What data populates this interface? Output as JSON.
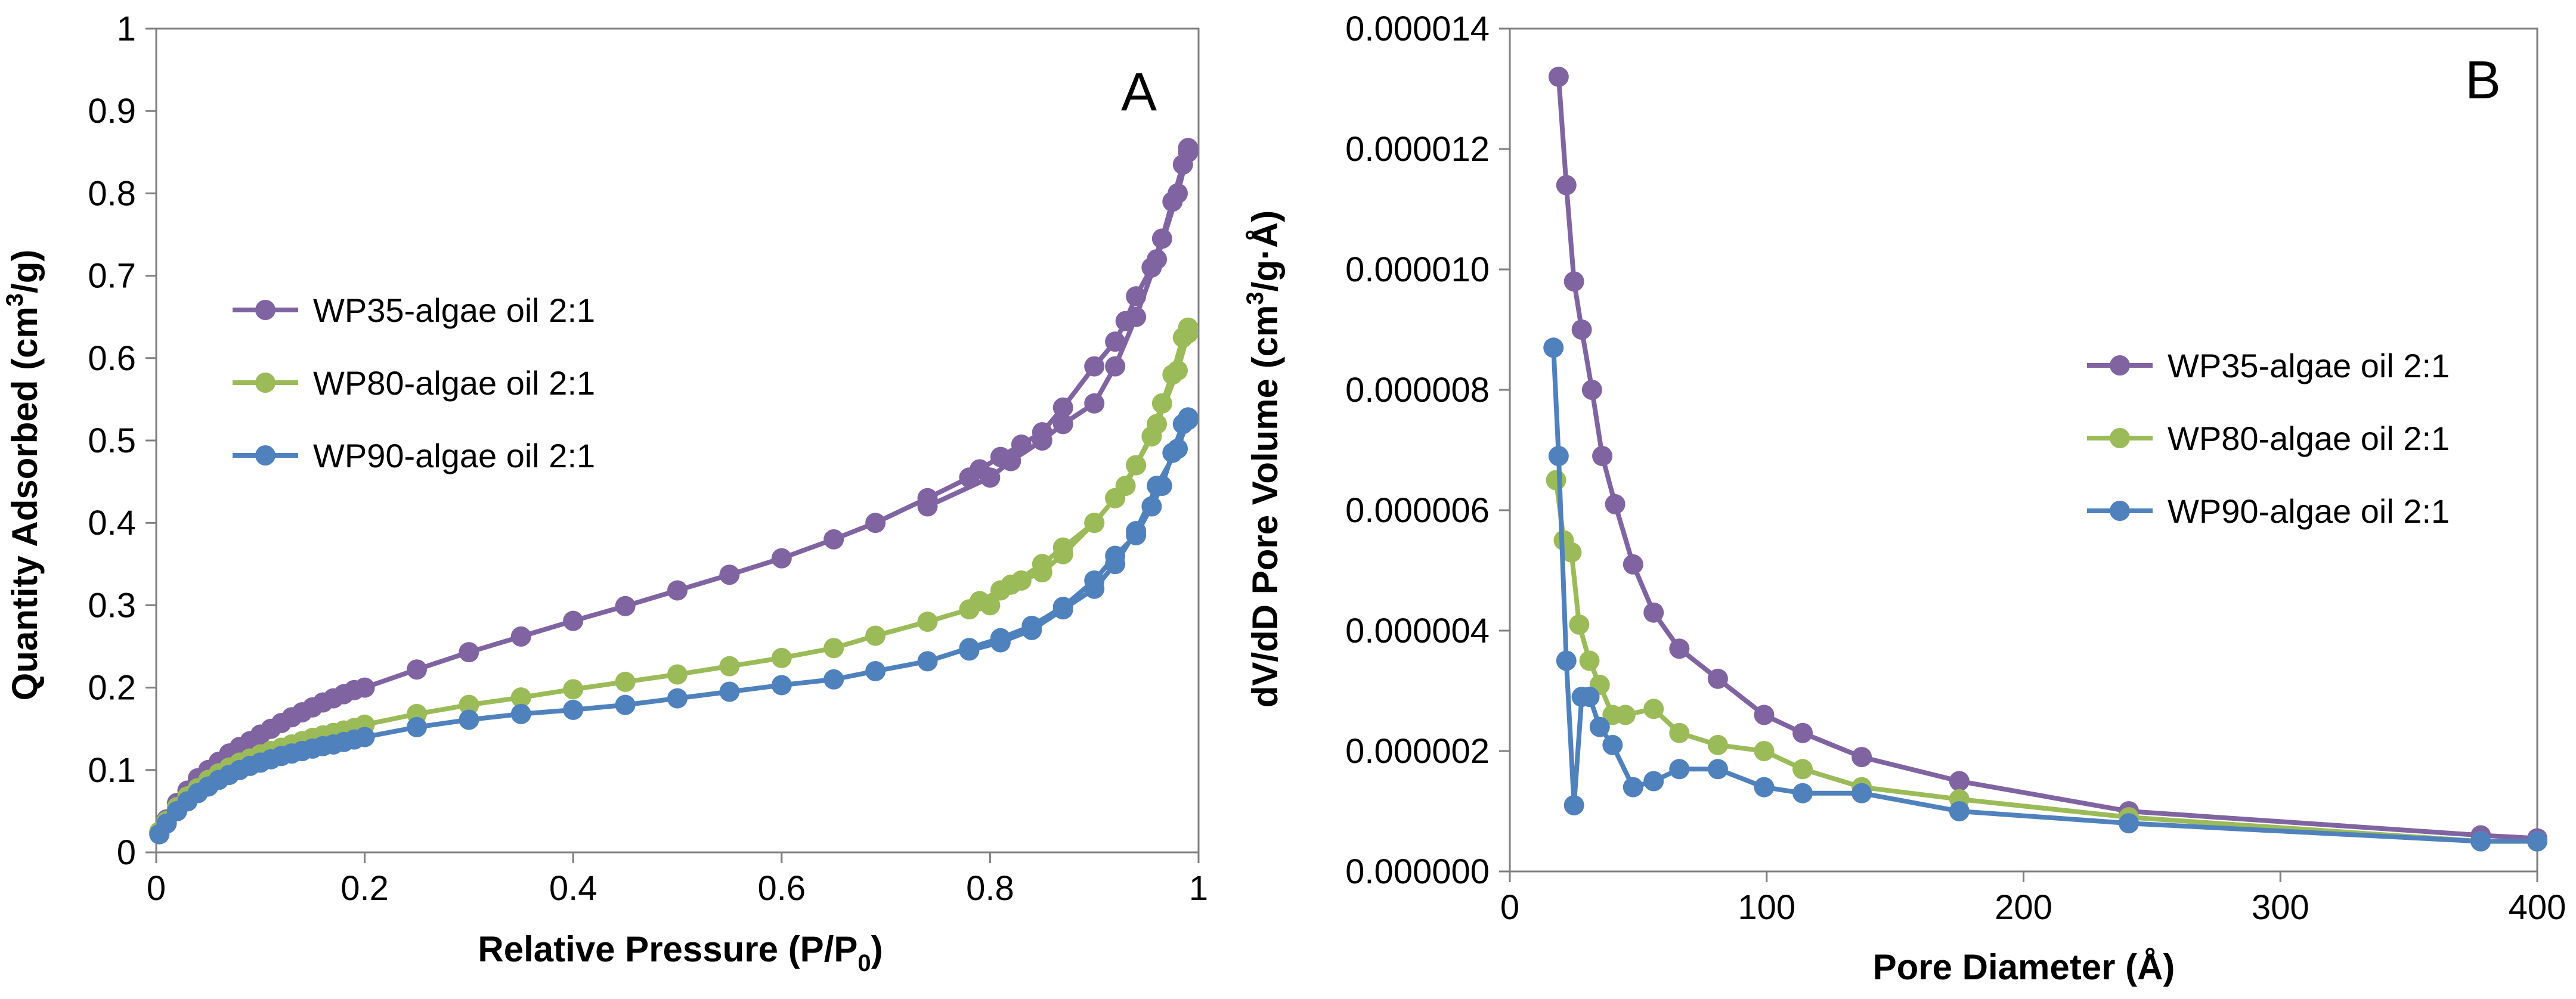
{
  "chart_data": [
    {
      "type": "line",
      "panel_label": "A",
      "xlabel": "Relative Pressure (P/P",
      "xlabel_sub": "0",
      "xlabel_end": ")",
      "ylabel": "Quantity Adsorbed (cm",
      "ylabel_sup": "3",
      "ylabel_end": "/g)",
      "xlim": [
        0,
        1
      ],
      "ylim": [
        0,
        1
      ],
      "x_ticks": [
        0,
        0.2,
        0.4,
        0.6,
        0.8,
        1
      ],
      "x_tick_labels": [
        "0",
        "0.2",
        "0.4",
        "0.6",
        "0.8",
        "1"
      ],
      "y_ticks": [
        0,
        0.1,
        0.2,
        0.3,
        0.4,
        0.5,
        0.6,
        0.7,
        0.8,
        0.9,
        1
      ],
      "y_tick_labels": [
        "0",
        "0.1",
        "0.2",
        "0.3",
        "0.4",
        "0.5",
        "0.6",
        "0.7",
        "0.8",
        "0.9",
        "1"
      ],
      "grid": false,
      "legend_position": "middle-left",
      "series": [
        {
          "name": "WP35-algae oil 2:1",
          "color": "#8064A2",
          "x": [
            0.003,
            0.01,
            0.02,
            0.03,
            0.04,
            0.05,
            0.06,
            0.07,
            0.08,
            0.09,
            0.1,
            0.11,
            0.12,
            0.13,
            0.14,
            0.15,
            0.16,
            0.17,
            0.18,
            0.19,
            0.2,
            0.25,
            0.3,
            0.35,
            0.4,
            0.45,
            0.5,
            0.55,
            0.6,
            0.65,
            0.69,
            0.74,
            0.78,
            0.79,
            0.81,
            0.83,
            0.85,
            0.87,
            0.9,
            0.92,
            0.93,
            0.94,
            0.955,
            0.965,
            0.975,
            0.985,
            0.99,
            0.99,
            0.98,
            0.96,
            0.94,
            0.92,
            0.9,
            0.87,
            0.85,
            0.82,
            0.8,
            0.74
          ],
          "y": [
            0.025,
            0.04,
            0.06,
            0.075,
            0.09,
            0.1,
            0.11,
            0.12,
            0.128,
            0.135,
            0.143,
            0.15,
            0.157,
            0.164,
            0.17,
            0.176,
            0.182,
            0.187,
            0.192,
            0.197,
            0.2,
            0.222,
            0.243,
            0.262,
            0.281,
            0.299,
            0.318,
            0.337,
            0.357,
            0.38,
            0.4,
            0.43,
            0.455,
            0.465,
            0.48,
            0.495,
            0.51,
            0.54,
            0.59,
            0.62,
            0.645,
            0.675,
            0.71,
            0.745,
            0.79,
            0.835,
            0.855,
            0.85,
            0.8,
            0.72,
            0.65,
            0.59,
            0.545,
            0.52,
            0.5,
            0.475,
            0.455,
            0.42
          ]
        },
        {
          "name": "WP80-algae oil 2:1",
          "color": "#9BBB59",
          "x": [
            0.003,
            0.01,
            0.02,
            0.03,
            0.04,
            0.05,
            0.06,
            0.07,
            0.08,
            0.09,
            0.1,
            0.11,
            0.12,
            0.13,
            0.14,
            0.15,
            0.16,
            0.17,
            0.18,
            0.19,
            0.2,
            0.25,
            0.3,
            0.35,
            0.4,
            0.45,
            0.5,
            0.55,
            0.6,
            0.65,
            0.69,
            0.74,
            0.78,
            0.79,
            0.81,
            0.83,
            0.85,
            0.87,
            0.9,
            0.92,
            0.93,
            0.94,
            0.955,
            0.965,
            0.975,
            0.985,
            0.99,
            0.99,
            0.98,
            0.96,
            0.94,
            0.92,
            0.9,
            0.87,
            0.85,
            0.82,
            0.8
          ],
          "y": [
            0.025,
            0.038,
            0.055,
            0.068,
            0.078,
            0.088,
            0.096,
            0.103,
            0.109,
            0.114,
            0.119,
            0.123,
            0.127,
            0.131,
            0.135,
            0.139,
            0.142,
            0.145,
            0.148,
            0.151,
            0.155,
            0.168,
            0.179,
            0.188,
            0.198,
            0.207,
            0.216,
            0.226,
            0.236,
            0.248,
            0.263,
            0.28,
            0.295,
            0.305,
            0.318,
            0.33,
            0.34,
            0.362,
            0.4,
            0.43,
            0.445,
            0.47,
            0.505,
            0.545,
            0.58,
            0.625,
            0.637,
            0.63,
            0.585,
            0.52,
            0.47,
            0.43,
            0.4,
            0.37,
            0.35,
            0.325,
            0.3
          ]
        },
        {
          "name": "WP90-algae oil 2:1",
          "color": "#4F81BD",
          "x": [
            0.003,
            0.01,
            0.02,
            0.03,
            0.04,
            0.05,
            0.06,
            0.07,
            0.08,
            0.09,
            0.1,
            0.11,
            0.12,
            0.13,
            0.14,
            0.15,
            0.16,
            0.17,
            0.18,
            0.19,
            0.2,
            0.25,
            0.3,
            0.35,
            0.4,
            0.45,
            0.5,
            0.55,
            0.6,
            0.65,
            0.69,
            0.74,
            0.78,
            0.81,
            0.84,
            0.87,
            0.9,
            0.92,
            0.94,
            0.955,
            0.965,
            0.975,
            0.985,
            0.99,
            0.99,
            0.98,
            0.96,
            0.94,
            0.92,
            0.9,
            0.87,
            0.84,
            0.81,
            0.78
          ],
          "y": [
            0.022,
            0.035,
            0.05,
            0.062,
            0.072,
            0.08,
            0.088,
            0.094,
            0.1,
            0.105,
            0.109,
            0.113,
            0.117,
            0.12,
            0.123,
            0.126,
            0.129,
            0.131,
            0.134,
            0.137,
            0.14,
            0.152,
            0.161,
            0.168,
            0.173,
            0.179,
            0.187,
            0.195,
            0.203,
            0.21,
            0.22,
            0.232,
            0.248,
            0.26,
            0.275,
            0.298,
            0.33,
            0.36,
            0.385,
            0.42,
            0.445,
            0.485,
            0.52,
            0.528,
            0.525,
            0.49,
            0.445,
            0.39,
            0.35,
            0.32,
            0.295,
            0.27,
            0.255,
            0.245
          ]
        }
      ]
    },
    {
      "type": "line",
      "panel_label": "B",
      "xlabel": "Pore Diameter (Å)",
      "ylabel": "dV/dD Pore Volume (cm",
      "ylabel_sup": "3",
      "ylabel_end": "/g·Å)",
      "xlim": [
        0,
        400
      ],
      "ylim": [
        0,
        1.4e-05
      ],
      "x_ticks": [
        0,
        100,
        200,
        300,
        400
      ],
      "x_tick_labels": [
        "0",
        "100",
        "200",
        "300",
        "400"
      ],
      "y_ticks": [
        0,
        2e-06,
        4e-06,
        6e-06,
        8e-06,
        1e-05,
        1.2e-05,
        1.4e-05
      ],
      "y_tick_labels": [
        "0.000000",
        "0.000002",
        "0.000004",
        "0.000006",
        "0.000008",
        "0.000010",
        "0.000012",
        "0.000014"
      ],
      "grid": false,
      "legend_position": "middle-right",
      "series": [
        {
          "name": "WP35-algae oil 2:1",
          "color": "#8064A2",
          "x": [
            19,
            22,
            25,
            28,
            32,
            36,
            41,
            48,
            56,
            66,
            81,
            99,
            114,
            137,
            175,
            241,
            378,
            400
          ],
          "y": [
            1.32e-05,
            1.14e-05,
            9.8e-06,
            9e-06,
            8e-06,
            6.9e-06,
            6.1e-06,
            5.1e-06,
            4.3e-06,
            3.7e-06,
            3.2e-06,
            2.6e-06,
            2.3e-06,
            1.9e-06,
            1.5e-06,
            1e-06,
            6e-07,
            5.5e-07
          ]
        },
        {
          "name": "WP80-algae oil 2:1",
          "color": "#9BBB59",
          "x": [
            18,
            21,
            24,
            27,
            31,
            35,
            40,
            45,
            56,
            66,
            81,
            99,
            114,
            137,
            175,
            241,
            378,
            400
          ],
          "y": [
            6.5e-06,
            5.5e-06,
            5.3e-06,
            4.1e-06,
            3.5e-06,
            3.1e-06,
            2.6e-06,
            2.6e-06,
            2.7e-06,
            2.3e-06,
            2.1e-06,
            2e-06,
            1.7e-06,
            1.4e-06,
            1.2e-06,
            9e-07,
            5e-07,
            5e-07
          ]
        },
        {
          "name": "WP90-algae oil 2:1",
          "color": "#4F81BD",
          "x": [
            17,
            19,
            22,
            25,
            28,
            31,
            35,
            40,
            48,
            56,
            66,
            81,
            99,
            114,
            137,
            175,
            241,
            378,
            400
          ],
          "y": [
            8.7e-06,
            6.9e-06,
            3.5e-06,
            1.1e-06,
            2.9e-06,
            2.9e-06,
            2.4e-06,
            2.1e-06,
            1.4e-06,
            1.5e-06,
            1.7e-06,
            1.7e-06,
            1.4e-06,
            1.3e-06,
            1.3e-06,
            1e-06,
            8e-07,
            5e-07,
            5e-07
          ]
        }
      ]
    }
  ]
}
